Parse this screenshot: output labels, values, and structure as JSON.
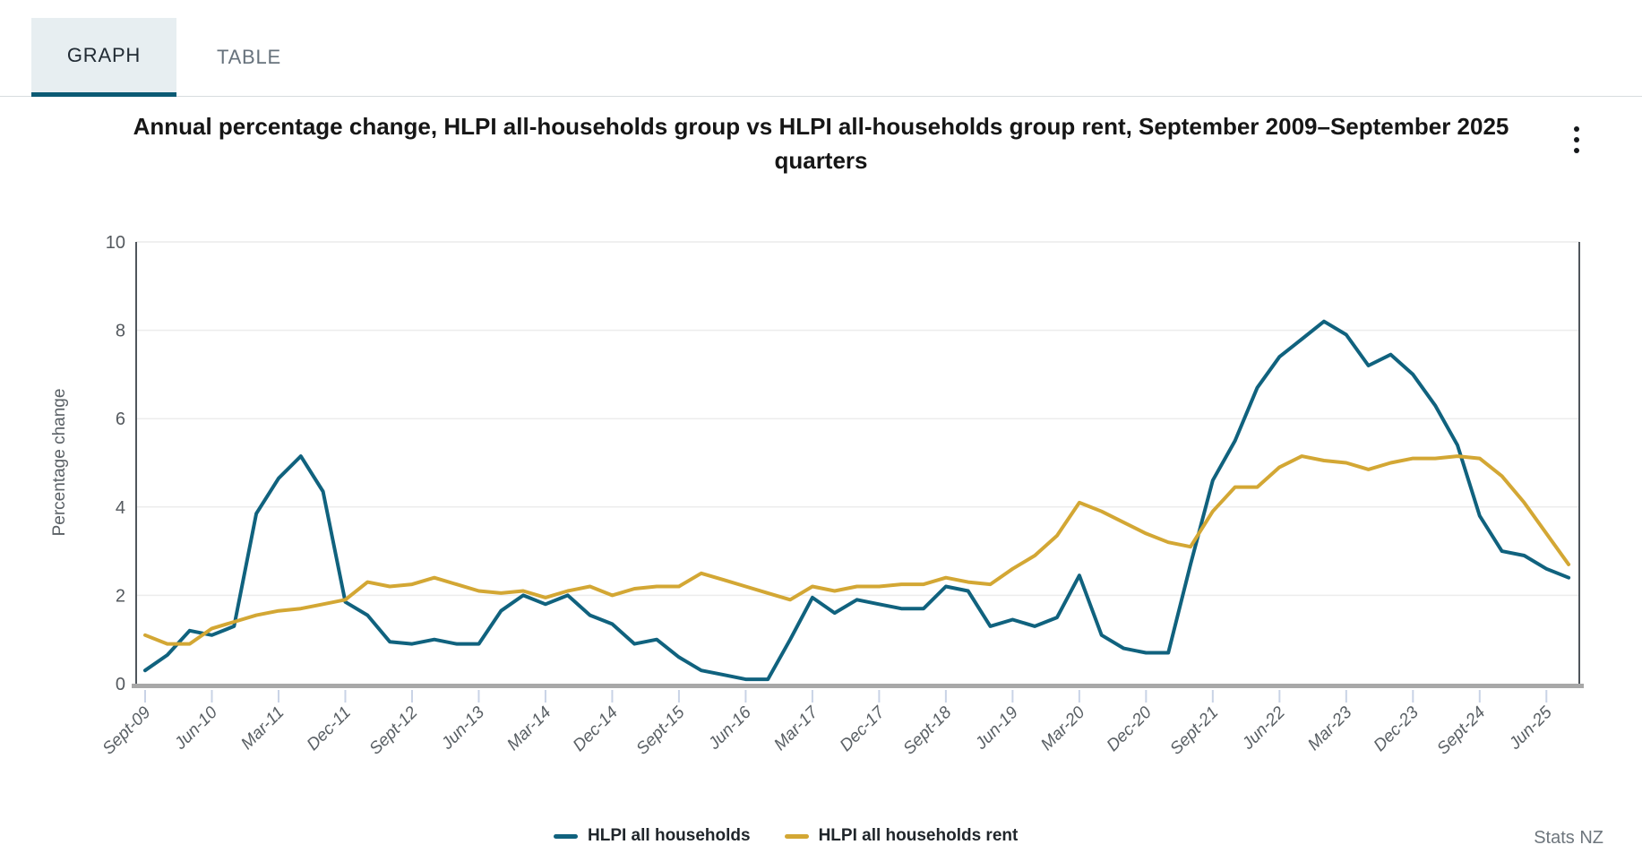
{
  "tabs": [
    {
      "label": "GRAPH",
      "active": true
    },
    {
      "label": "TABLE",
      "active": false
    }
  ],
  "title": "Annual percentage change, HLPI all-households group vs HLPI all-households group rent, September 2009–September 2025 quarters",
  "menu_icon": "kebab-vertical-dots",
  "credit": "Stats NZ",
  "chart_data": {
    "type": "line",
    "title": "Annual percentage change, HLPI all-households group vs HLPI all-households group rent, September 2009–September 2025 quarters",
    "xlabel": "",
    "ylabel": "Percentage change",
    "ylim": [
      0,
      10
    ],
    "yticks": [
      0,
      2,
      4,
      6,
      8,
      10
    ],
    "grid": "horizontal",
    "legend_position": "bottom",
    "xtick_labels": [
      "Sept-09",
      "Jun-10",
      "Mar-11",
      "Dec-11",
      "Sept-12",
      "Jun-13",
      "Mar-14",
      "Dec-14",
      "Sept-15",
      "Jun-16",
      "Mar-17",
      "Dec-17",
      "Sept-18",
      "Jun-19",
      "Mar-20",
      "Dec-20",
      "Sept-21",
      "Jun-22",
      "Mar-23",
      "Dec-23",
      "Sept-24",
      "Jun-25"
    ],
    "x": [
      "Sept-09",
      "Dec-09",
      "Mar-10",
      "Jun-10",
      "Sept-10",
      "Dec-10",
      "Mar-11",
      "Jun-11",
      "Sept-11",
      "Dec-11",
      "Mar-12",
      "Jun-12",
      "Sept-12",
      "Dec-12",
      "Mar-13",
      "Jun-13",
      "Sept-13",
      "Dec-13",
      "Mar-14",
      "Jun-14",
      "Sept-14",
      "Dec-14",
      "Mar-15",
      "Jun-15",
      "Sept-15",
      "Dec-15",
      "Mar-16",
      "Jun-16",
      "Sept-16",
      "Dec-16",
      "Mar-17",
      "Jun-17",
      "Sept-17",
      "Dec-17",
      "Mar-18",
      "Jun-18",
      "Sept-18",
      "Dec-18",
      "Mar-19",
      "Jun-19",
      "Sept-19",
      "Dec-19",
      "Mar-20",
      "Jun-20",
      "Sept-20",
      "Dec-20",
      "Mar-21",
      "Jun-21",
      "Sept-21",
      "Dec-21",
      "Mar-22",
      "Jun-22",
      "Sept-22",
      "Dec-22",
      "Mar-23",
      "Jun-23",
      "Sept-23",
      "Dec-23",
      "Mar-24",
      "Jun-24",
      "Sept-24",
      "Dec-24",
      "Mar-25",
      "Jun-25",
      "Sept-25"
    ],
    "series": [
      {
        "name": "HLPI all households",
        "color": "#10627e",
        "values": [
          0.3,
          0.65,
          1.2,
          1.1,
          1.3,
          3.85,
          4.65,
          5.15,
          4.35,
          1.85,
          1.55,
          0.95,
          0.9,
          1.0,
          0.9,
          0.9,
          1.65,
          2.0,
          1.8,
          2.0,
          1.55,
          1.35,
          0.9,
          1.0,
          0.6,
          0.3,
          0.2,
          0.1,
          0.1,
          1.0,
          1.95,
          1.6,
          1.9,
          1.8,
          1.7,
          1.7,
          2.2,
          2.1,
          1.3,
          1.45,
          1.3,
          1.5,
          2.45,
          1.1,
          0.8,
          0.7,
          0.7,
          2.7,
          4.6,
          5.5,
          6.7,
          7.4,
          7.8,
          8.2,
          7.9,
          7.2,
          7.45,
          7.0,
          6.3,
          5.4,
          3.8,
          3.0,
          2.9,
          2.6,
          2.4
        ]
      },
      {
        "name": "HLPI all households rent",
        "color": "#d3a734",
        "values": [
          1.1,
          0.9,
          0.9,
          1.25,
          1.4,
          1.55,
          1.65,
          1.7,
          1.8,
          1.9,
          2.3,
          2.2,
          2.25,
          2.4,
          2.25,
          2.1,
          2.05,
          2.1,
          1.95,
          2.1,
          2.2,
          2.0,
          2.15,
          2.2,
          2.2,
          2.5,
          2.35,
          2.2,
          2.05,
          1.9,
          2.2,
          2.1,
          2.2,
          2.2,
          2.25,
          2.25,
          2.4,
          2.3,
          2.25,
          2.6,
          2.9,
          3.35,
          4.1,
          3.9,
          3.65,
          3.4,
          3.2,
          3.1,
          3.9,
          4.45,
          4.45,
          4.9,
          5.15,
          5.05,
          5.0,
          4.85,
          5.0,
          5.1,
          5.1,
          5.15,
          5.1,
          4.7,
          4.1,
          3.4,
          2.7
        ]
      }
    ]
  }
}
